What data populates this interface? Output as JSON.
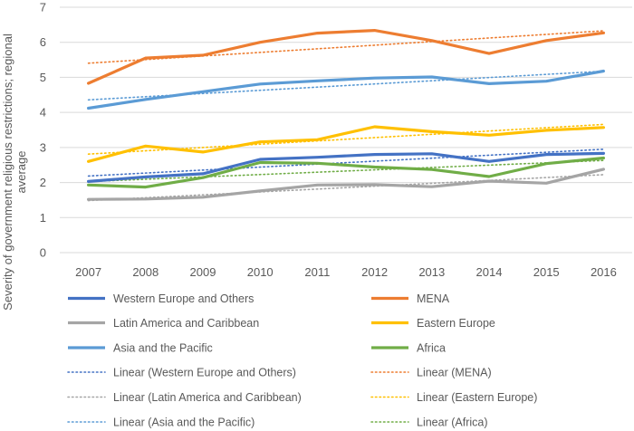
{
  "chart_data": {
    "type": "line",
    "title": "",
    "xlabel": "",
    "ylabel": "Severity of government religious restrictions; regional average",
    "ylabel_lines": [
      "Severity of government religious restrictions; regional",
      "average"
    ],
    "ylim": [
      0,
      7
    ],
    "yticks": [
      0,
      1,
      2,
      3,
      4,
      5,
      6,
      7
    ],
    "grid": true,
    "legend_position": "bottom",
    "categories": [
      "2007",
      "2008",
      "2009",
      "2010",
      "2011",
      "2012",
      "2013",
      "2014",
      "2015",
      "2016"
    ],
    "series": [
      {
        "name": "Western Europe and Others",
        "color": "#4472C4",
        "values": [
          2.03,
          2.16,
          2.25,
          2.66,
          2.72,
          2.8,
          2.82,
          2.6,
          2.8,
          2.83
        ]
      },
      {
        "name": "MENA",
        "color": "#ED7D31",
        "values": [
          4.83,
          5.55,
          5.63,
          6.0,
          6.26,
          6.34,
          6.05,
          5.68,
          6.05,
          6.27
        ]
      },
      {
        "name": "Latin America and Caribbean",
        "color": "#A5A5A5",
        "values": [
          1.52,
          1.53,
          1.58,
          1.76,
          1.93,
          1.94,
          1.88,
          2.04,
          1.98,
          2.38
        ]
      },
      {
        "name": "Eastern Europe",
        "color": "#FFC000",
        "values": [
          2.6,
          3.04,
          2.87,
          3.16,
          3.22,
          3.59,
          3.45,
          3.35,
          3.49,
          3.57
        ]
      },
      {
        "name": "Asia and the Pacific",
        "color": "#5B9BD5",
        "values": [
          4.12,
          4.37,
          4.59,
          4.81,
          4.9,
          4.98,
          5.01,
          4.82,
          4.89,
          5.18
        ]
      },
      {
        "name": "Africa",
        "color": "#70AD47",
        "values": [
          1.93,
          1.87,
          2.14,
          2.57,
          2.55,
          2.44,
          2.37,
          2.17,
          2.54,
          2.7
        ]
      }
    ],
    "trendline_prefix": "Linear",
    "legend": [
      {
        "label": "Western Europe and Others",
        "series": 0,
        "style": "solid"
      },
      {
        "label": "MENA",
        "series": 1,
        "style": "solid"
      },
      {
        "label": "Latin America and Caribbean",
        "series": 2,
        "style": "solid"
      },
      {
        "label": "Eastern Europe",
        "series": 3,
        "style": "solid"
      },
      {
        "label": "Asia and the Pacific",
        "series": 4,
        "style": "solid"
      },
      {
        "label": "Africa",
        "series": 5,
        "style": "solid"
      },
      {
        "label": "Linear (Western Europe and Others)",
        "series": 0,
        "style": "dotted"
      },
      {
        "label": "Linear (MENA)",
        "series": 1,
        "style": "dotted"
      },
      {
        "label": "Linear (Latin America and Caribbean)",
        "series": 2,
        "style": "dotted"
      },
      {
        "label": "Linear (Eastern Europe)",
        "series": 3,
        "style": "dotted"
      },
      {
        "label": "Linear (Asia and the Pacific)",
        "series": 4,
        "style": "dotted"
      },
      {
        "label": "Linear (Africa)",
        "series": 5,
        "style": "dotted"
      }
    ]
  }
}
